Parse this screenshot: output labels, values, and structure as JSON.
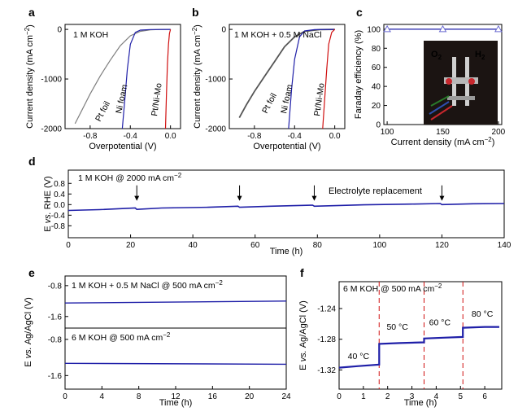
{
  "chart_data": [
    {
      "panel": "a",
      "type": "line",
      "annotation": "1 M KOH",
      "xlabel": "Overpotential (V)",
      "ylabel": "Current density (mA cm−2)",
      "xlim": [
        -1.05,
        0.1
      ],
      "ylim": [
        -2000,
        100
      ],
      "xticks": [
        "-0.8",
        "-0.4",
        "0.0"
      ],
      "xtick_values": [
        -0.8,
        -0.4,
        0.0
      ],
      "yticks": [
        "0",
        "-1000",
        "-2000"
      ],
      "ytick_values": [
        0,
        -1000,
        -2000
      ],
      "series": [
        {
          "name": "Pt foil",
          "color": "#7f7f7f",
          "points": [
            [
              0,
              0
            ],
            [
              -0.1,
              -2
            ],
            [
              -0.2,
              -10
            ],
            [
              -0.3,
              -40
            ],
            [
              -0.4,
              -130
            ],
            [
              -0.5,
              -330
            ],
            [
              -0.6,
              -620
            ],
            [
              -0.7,
              -940
            ],
            [
              -0.8,
              -1300
            ],
            [
              -0.88,
              -1620
            ],
            [
              -0.95,
              -1900
            ]
          ]
        },
        {
          "name": "Ni foam",
          "color": "#1f1fa8",
          "points": [
            [
              0,
              0
            ],
            [
              -0.2,
              -3
            ],
            [
              -0.3,
              -15
            ],
            [
              -0.35,
              -60
            ],
            [
              -0.4,
              -300
            ],
            [
              -0.43,
              -800
            ],
            [
              -0.45,
              -1300
            ],
            [
              -0.48,
              -2000
            ]
          ]
        },
        {
          "name": "Pt/Ni-Mo",
          "color": "#d01010",
          "points": [
            [
              0,
              0
            ],
            [
              -0.01,
              -80
            ],
            [
              -0.02,
              -300
            ],
            [
              -0.03,
              -700
            ],
            [
              -0.04,
              -1300
            ],
            [
              -0.05,
              -2000
            ]
          ]
        }
      ]
    },
    {
      "panel": "b",
      "type": "line",
      "annotation": "1 M KOH + 0.5 M NaCl",
      "xlabel": "Overpotential (V)",
      "ylabel": "Current density (mA cm−2)",
      "xlim": [
        -1.05,
        0.1
      ],
      "ylim": [
        -2000,
        100
      ],
      "xticks": [
        "-0.8",
        "-0.4",
        "0.0"
      ],
      "xtick_values": [
        -0.8,
        -0.4,
        0.0
      ],
      "yticks": [
        "0",
        "-1000",
        "-2000"
      ],
      "ytick_values": [
        0,
        -1000,
        -2000
      ],
      "series": [
        {
          "name": "Pt foil",
          "color": "#555555",
          "points": [
            [
              0,
              0
            ],
            [
              -0.15,
              -5
            ],
            [
              -0.3,
              -40
            ],
            [
              -0.4,
              -150
            ],
            [
              -0.5,
              -350
            ],
            [
              -0.6,
              -650
            ],
            [
              -0.7,
              -950
            ],
            [
              -0.8,
              -1250
            ],
            [
              -0.88,
              -1520
            ],
            [
              -0.95,
              -1780
            ]
          ]
        },
        {
          "name": "Ni foam",
          "color": "#1f1fa8",
          "points": [
            [
              0,
              0
            ],
            [
              -0.2,
              -5
            ],
            [
              -0.3,
              -30
            ],
            [
              -0.35,
              -150
            ],
            [
              -0.4,
              -600
            ],
            [
              -0.43,
              -1200
            ],
            [
              -0.46,
              -2000
            ]
          ]
        },
        {
          "name": "Pt/Ni-Mo",
          "color": "#d01010",
          "points": [
            [
              0,
              0
            ],
            [
              -0.03,
              -60
            ],
            [
              -0.06,
              -300
            ],
            [
              -0.08,
              -800
            ],
            [
              -0.1,
              -1400
            ],
            [
              -0.12,
              -2000
            ]
          ]
        }
      ]
    },
    {
      "panel": "c",
      "type": "line",
      "xlabel": "Current density (mA cm−2)",
      "ylabel": "Faraday efficiency (%)",
      "xlim": [
        97,
        203
      ],
      "ylim": [
        0,
        105
      ],
      "xticks": [
        "100",
        "150",
        "200"
      ],
      "xtick_values": [
        100,
        150,
        200
      ],
      "yticks": [
        "0",
        "20",
        "40",
        "60",
        "80",
        "100"
      ],
      "ytick_values": [
        0,
        20,
        40,
        60,
        80,
        100
      ],
      "series": [
        {
          "color": "#1f1fa8",
          "marker": "triangle",
          "x": [
            100,
            150,
            200
          ],
          "values": [
            100,
            100,
            100
          ]
        }
      ],
      "inset_labels": [
        "O2",
        "H2"
      ]
    },
    {
      "panel": "d",
      "type": "line",
      "annotation": "1 M KOH @ 2000 mA cm−2",
      "annotation2": "Electrolyte replacement",
      "xlabel": "Time (h)",
      "ylabel": "E vs. RHE (V)",
      "xlim": [
        0,
        140
      ],
      "ylim": [
        -1.25,
        1.3
      ],
      "xticks": [
        "0",
        "20",
        "40",
        "60",
        "80",
        "100",
        "120",
        "140"
      ],
      "xtick_values": [
        0,
        20,
        40,
        60,
        80,
        100,
        120,
        140
      ],
      "yticks": [
        "0.8",
        "0.4",
        "0.0",
        "-0.4",
        "-0.8"
      ],
      "ytick_values": [
        0.8,
        0.4,
        0.0,
        -0.4,
        -0.8
      ],
      "arrows_x": [
        22,
        55,
        79,
        120
      ],
      "series": [
        {
          "color": "#1f1fa8",
          "points": [
            [
              0,
              -0.22
            ],
            [
              10,
              -0.19
            ],
            [
              21.5,
              -0.13
            ],
            [
              22,
              -0.18
            ],
            [
              30,
              -0.13
            ],
            [
              45,
              -0.1
            ],
            [
              54.5,
              -0.06
            ],
            [
              55,
              -0.1
            ],
            [
              65,
              -0.06
            ],
            [
              78.5,
              -0.02
            ],
            [
              79,
              -0.06
            ],
            [
              95,
              -0.01
            ],
            [
              110,
              0.02
            ],
            [
              119.5,
              0.04
            ],
            [
              120,
              0.0
            ],
            [
              130,
              0.03
            ],
            [
              140,
              0.04
            ]
          ]
        }
      ]
    },
    {
      "panel": "e",
      "type": "line",
      "xlabel": "Time (h)",
      "ylabel": "E vs. Ag/AgCl (V)",
      "xlim": [
        0,
        24
      ],
      "xticks": [
        "0",
        "4",
        "8",
        "12",
        "16",
        "20",
        "24"
      ],
      "xtick_values": [
        0,
        4,
        8,
        12,
        16,
        20,
        24
      ],
      "subplots": [
        {
          "annotation": "1 M KOH + 0.5 M NaCl @ 500 mA cm−2",
          "ylim": [
            -1.9,
            -0.55
          ],
          "yticks": [
            "-0.8",
            "-1.6"
          ],
          "ytick_values": [
            -0.8,
            -1.6
          ],
          "series": [
            {
              "color": "#1f1fa8",
              "points": [
                [
                  0,
                  -1.25
                ],
                [
                  24,
                  -1.2
                ]
              ]
            }
          ]
        },
        {
          "annotation": "6 M KOH @ 500 mA cm−2",
          "ylim": [
            -1.9,
            -0.55
          ],
          "yticks": [
            "-0.8",
            "-1.6"
          ],
          "ytick_values": [
            -0.8,
            -1.6
          ],
          "series": [
            {
              "color": "#1f1fa8",
              "points": [
                [
                  0,
                  -1.33
                ],
                [
                  24,
                  -1.35
                ]
              ]
            }
          ]
        }
      ]
    },
    {
      "panel": "f",
      "type": "line",
      "annotation": "6 M KOH @ 500 mA cm−2",
      "xlabel": "Time (h)",
      "ylabel": "E vs. Ag/AgCl (V)",
      "xlim": [
        0,
        6.7
      ],
      "ylim": [
        -1.345,
        -1.205
      ],
      "xticks": [
        "0",
        "1",
        "2",
        "3",
        "4",
        "5",
        "6"
      ],
      "xtick_values": [
        0,
        1,
        2,
        3,
        4,
        5,
        6
      ],
      "yticks": [
        "-1.24",
        "-1.28",
        "-1.32"
      ],
      "ytick_values": [
        -1.24,
        -1.28,
        -1.32
      ],
      "separators_x": [
        1.65,
        3.5,
        5.1
      ],
      "temperature_labels": [
        {
          "text": "40 °C",
          "x": 0.8,
          "y": -1.312
        },
        {
          "text": "50 °C",
          "x": 2.4,
          "y": -1.274
        },
        {
          "text": "60 °C",
          "x": 4.15,
          "y": -1.268
        },
        {
          "text": "80 °C",
          "x": 5.9,
          "y": -1.257
        }
      ],
      "series": [
        {
          "color": "#1f1fa8",
          "points": [
            [
              0,
              -1.317
            ],
            [
              0.8,
              -1.315
            ],
            [
              1.65,
              -1.313
            ],
            [
              1.65,
              -1.286
            ],
            [
              2.5,
              -1.285
            ],
            [
              3.5,
              -1.284
            ],
            [
              3.5,
              -1.279
            ],
            [
              4.3,
              -1.278
            ],
            [
              5.1,
              -1.277
            ],
            [
              5.1,
              -1.265
            ],
            [
              6.0,
              -1.264
            ],
            [
              6.6,
              -1.264
            ]
          ]
        }
      ]
    }
  ]
}
